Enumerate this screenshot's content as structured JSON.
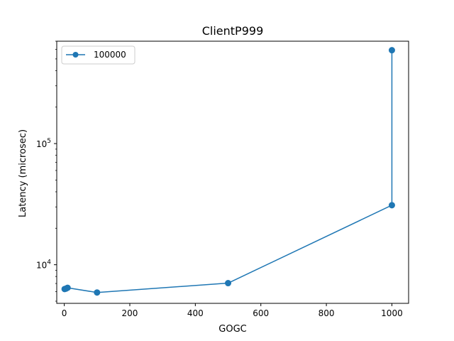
{
  "chart_data": {
    "type": "line",
    "title": "ClientP999",
    "xlabel": "GOGC",
    "ylabel": "Latency (microsec)",
    "xlim": [
      -23,
      1051
    ],
    "ylim": [
      4800,
      700000
    ],
    "yscale": "log",
    "grid": false,
    "legend_position": "top-left",
    "x_ticks": [
      {
        "value": 0,
        "label": "0"
      },
      {
        "value": 200,
        "label": "200"
      },
      {
        "value": 400,
        "label": "400"
      },
      {
        "value": 600,
        "label": "600"
      },
      {
        "value": 800,
        "label": "800"
      },
      {
        "value": 1000,
        "label": "1000"
      }
    ],
    "y_ticks": [
      {
        "value": 10000,
        "base": "10",
        "exp": "4"
      },
      {
        "value": 100000,
        "base": "10",
        "exp": "5"
      }
    ],
    "series": [
      {
        "name": "100000",
        "color": "#1f77b4",
        "marker": "circle",
        "x": [
          1,
          5,
          10,
          100,
          500,
          1000,
          1000
        ],
        "y": [
          6300,
          6350,
          6450,
          5900,
          7050,
          31000,
          590000
        ]
      }
    ]
  }
}
